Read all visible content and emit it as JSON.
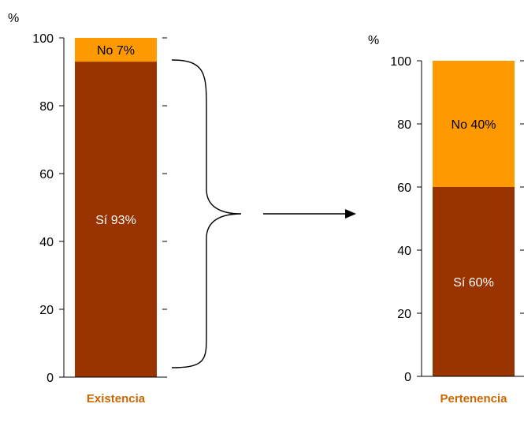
{
  "chart_data": [
    {
      "type": "bar",
      "stacked": true,
      "ylabel": "%",
      "ylim": [
        0,
        100
      ],
      "yticks": [
        "0",
        "20",
        "40",
        "60",
        "80",
        "100"
      ],
      "categories": [
        "Existencia"
      ],
      "series": [
        {
          "name": "Sí",
          "values": [
            93
          ],
          "label": "Sí 93%",
          "color": "#993300"
        },
        {
          "name": "No",
          "values": [
            7
          ],
          "label": "No  7%",
          "color": "#ff9900"
        }
      ]
    },
    {
      "type": "bar",
      "stacked": true,
      "ylabel": "%",
      "ylim": [
        0,
        100
      ],
      "yticks": [
        "0",
        "20",
        "40",
        "60",
        "80",
        "100"
      ],
      "categories": [
        "Pertenencia"
      ],
      "series": [
        {
          "name": "Sí",
          "values": [
            60
          ],
          "label": "Sí 60%",
          "color": "#993300"
        },
        {
          "name": "No",
          "values": [
            40
          ],
          "label": "No 40%",
          "color": "#ff9900"
        }
      ]
    }
  ],
  "colors": {
    "si": "#993300",
    "no": "#ff9900",
    "category_label": "#cc6600",
    "si_label_text": "#ffffff",
    "no_label_text": "#000000"
  },
  "connector": {
    "brace_icon": "right-curly-brace-icon",
    "arrow_icon": "right-arrow-icon"
  }
}
